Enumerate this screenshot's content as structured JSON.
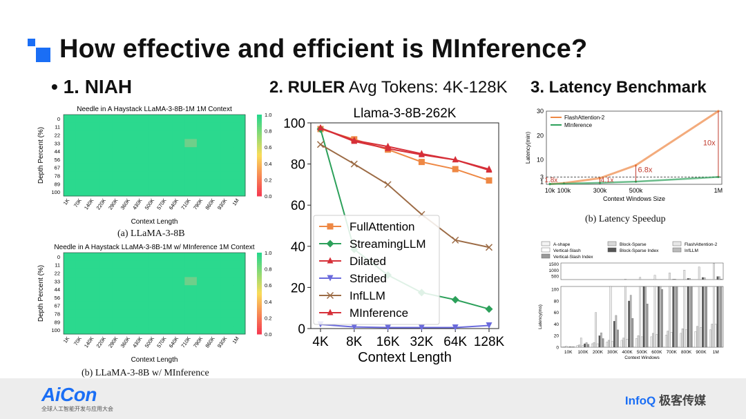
{
  "slide": {
    "title": "How effective and efficient is MInference?",
    "brand_color": "#1a6ef5"
  },
  "sections": {
    "niah": "• 1. NIAH",
    "ruler_bold": "2. RULER",
    "ruler_rest": " Avg Tokens: 4K-128K",
    "latency": "3. Latency Benchmark"
  },
  "footer": {
    "aicon": "AiCon",
    "aicon_sub": "全球人工智能开发与应用大会",
    "infoq": "InfoQ",
    "infoq_cn": " 极客传媒"
  },
  "chart_data": [
    {
      "type": "heatmap",
      "title": "Needle in A Haystack LLaMA-3-8B-1M 1M Context",
      "caption": "(a) LLaMA-3-8B",
      "xlabel": "Context Length",
      "ylabel": "Depth Percent (%)",
      "x_ticks": [
        "1K",
        "70K",
        "140K",
        "220K",
        "290K",
        "360K",
        "430K",
        "500K",
        "570K",
        "640K",
        "710K",
        "790K",
        "860K",
        "930K",
        "1M"
      ],
      "y_ticks": [
        "0",
        "11",
        "22",
        "33",
        "44",
        "56",
        "67",
        "78",
        "89",
        "100"
      ],
      "colorbar_ticks": [
        "1.0",
        "0.8",
        "0.6",
        "0.4",
        "0.2",
        "0.0"
      ],
      "base_value": 1.0,
      "weak_cells": [
        {
          "x": "710K",
          "y": "33",
          "value": 0.85
        }
      ]
    },
    {
      "type": "heatmap",
      "title": "Needle in A Haystack LLaMA-3-8B-1M w/ MInference 1M Context",
      "caption": "(b) LLaMA-3-8B w/ MInference",
      "xlabel": "Context Length",
      "ylabel": "Depth Percent (%)",
      "x_ticks": [
        "1K",
        "70K",
        "140K",
        "220K",
        "290K",
        "360K",
        "430K",
        "500K",
        "570K",
        "640K",
        "710K",
        "790K",
        "860K",
        "930K",
        "1M"
      ],
      "y_ticks": [
        "0",
        "11",
        "22",
        "33",
        "44",
        "56",
        "67",
        "78",
        "89",
        "100"
      ],
      "colorbar_ticks": [
        "1.0",
        "0.8",
        "0.6",
        "0.4",
        "0.2",
        "0.0"
      ],
      "base_value": 1.0,
      "weak_cells": [
        {
          "x": "710K",
          "y": "33",
          "value": 0.85
        }
      ]
    },
    {
      "type": "line",
      "title": "Llama-3-8B-262K",
      "xlabel": "Context Length",
      "ylabel": "",
      "categories": [
        "4K",
        "8K",
        "16K",
        "32K",
        "64K",
        "128K"
      ],
      "ylim": [
        0,
        100
      ],
      "y_ticks": [
        "0",
        "20",
        "40",
        "60",
        "80",
        "100"
      ],
      "legend": "center-left",
      "series": [
        {
          "name": "FullAttention",
          "color": "#ee8844",
          "marker": "square",
          "values": [
            97,
            92,
            87,
            81,
            77.5,
            72
          ]
        },
        {
          "name": "StreamingLLM",
          "color": "#2ca05a",
          "marker": "diamond",
          "values": [
            97,
            38.5,
            26,
            17.5,
            14,
            9.5
          ]
        },
        {
          "name": "Dilated",
          "color": "#d62f38",
          "marker": "triangle-up",
          "values": [
            97.5,
            91.5,
            88.5,
            85,
            82,
            77.5
          ]
        },
        {
          "name": "Strided",
          "color": "#6a6adc",
          "marker": "triangle-down",
          "values": [
            2,
            0.8,
            0.5,
            0.5,
            0.5,
            1.5
          ]
        },
        {
          "name": "InfLLM",
          "color": "#9c6b45",
          "marker": "x",
          "values": [
            89.5,
            80,
            70,
            55.5,
            43,
            39.5
          ]
        },
        {
          "name": "MInference",
          "color": "#d62f38",
          "marker": "triangle-up",
          "values": [
            97.5,
            91,
            87.5,
            84.5,
            82,
            77
          ]
        }
      ]
    },
    {
      "type": "line",
      "caption": "(b) Latency Speedup",
      "xlabel": "Context Windows Size",
      "ylabel": "Latency(min)",
      "x_ticks": [
        "10k",
        "100k",
        "300k",
        "500k",
        "1M"
      ],
      "y_ticks": [
        "1",
        "3",
        "10",
        "20",
        "30"
      ],
      "ylim": [
        0,
        30
      ],
      "legend": "top-left",
      "series": [
        {
          "name": "FlashAttention-2",
          "color": "#ee8844",
          "x": [
            10,
            100,
            300,
            500,
            1000
          ],
          "values": [
            0.1,
            0.5,
            2.5,
            7.8,
            30
          ]
        },
        {
          "name": "MInference",
          "color": "#2ca05a",
          "x": [
            10,
            100,
            300,
            500,
            1000
          ],
          "values": [
            0.1,
            0.3,
            0.6,
            1.1,
            3
          ]
        }
      ],
      "annotations": [
        "1.8x",
        "4.1x",
        "6.8x",
        "10x"
      ]
    },
    {
      "type": "bar",
      "xlabel": "Context Windows",
      "ylabel": "Latency(ms)",
      "categories": [
        "10K",
        "100K",
        "200K",
        "300K",
        "400K",
        "500K",
        "600K",
        "700K",
        "800K",
        "900K",
        "1M"
      ],
      "legend": "top",
      "y_ticks_upper": [
        "500",
        "1000",
        "1500"
      ],
      "y_ticks_lower": [
        "0",
        "20",
        "40",
        "60",
        "80",
        "100"
      ],
      "series": [
        {
          "name": "A-shape",
          "values": [
            1,
            3,
            6,
            9,
            12,
            15,
            18,
            21,
            24,
            27,
            30
          ]
        },
        {
          "name": "Block-Sparse",
          "values": [
            1,
            4,
            8,
            12,
            16,
            20,
            24,
            28,
            32,
            36,
            40
          ]
        },
        {
          "name": "FlashAttention-2",
          "values": [
            2,
            16,
            60,
            140,
            250,
            390,
            560,
            760,
            1000,
            1260,
            1550
          ]
        },
        {
          "name": "Vertical-Slash",
          "values": [
            1,
            3,
            6,
            10,
            14,
            18,
            22,
            26,
            30,
            34,
            40
          ]
        },
        {
          "name": "Block-Sparse Index",
          "values": [
            1,
            6,
            20,
            45,
            80,
            120,
            170,
            230,
            300,
            380,
            460
          ]
        },
        {
          "name": "InfLLM",
          "values": [
            1,
            8,
            25,
            55,
            90,
            130,
            180,
            240,
            300,
            370,
            450
          ]
        },
        {
          "name": "Vertical-Slash Index",
          "values": [
            1,
            5,
            15,
            30,
            50,
            75,
            100,
            130,
            165,
            200,
            250
          ]
        }
      ]
    }
  ]
}
